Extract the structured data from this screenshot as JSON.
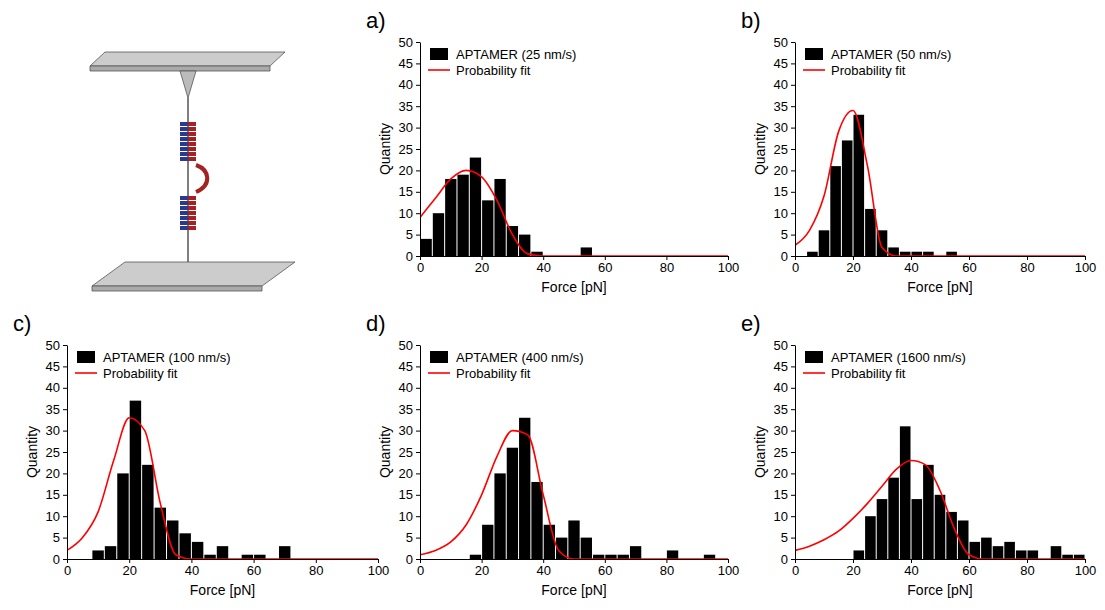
{
  "chart_data": [
    {
      "type": "histogram",
      "title": "a)",
      "xlabel": "Force [pN]",
      "ylabel": "Quantity",
      "xlim": [
        0,
        100
      ],
      "ylim": [
        0,
        50
      ],
      "xticks": [
        0,
        20,
        40,
        60,
        80,
        100
      ],
      "yticks": [
        0,
        5,
        10,
        15,
        20,
        25,
        30,
        35,
        40,
        45,
        50
      ],
      "grid": false,
      "legend": "upper left",
      "bins": [
        0,
        4,
        8,
        12,
        16,
        20,
        24,
        28,
        32,
        36,
        40,
        44,
        48,
        52,
        56,
        60,
        64,
        68,
        72,
        76,
        80,
        84,
        88,
        92,
        96,
        100
      ],
      "series": [
        {
          "name": "APTAMER (25 nm/s)",
          "type": "bar",
          "color": "#000000",
          "values": [
            4,
            10,
            18,
            19,
            23,
            13,
            18,
            7,
            5,
            1,
            0,
            0,
            0,
            2,
            0,
            0,
            0,
            0,
            0,
            0,
            0,
            0,
            0,
            0,
            0
          ]
        },
        {
          "name": "Probability fit",
          "type": "line",
          "color": "#ff0000",
          "x": [
            0,
            5,
            10,
            15,
            20,
            25,
            30,
            35,
            40,
            45,
            50,
            55,
            60,
            65,
            70,
            75,
            80,
            85,
            90,
            95,
            100
          ],
          "values": [
            9,
            13.5,
            18,
            20,
            18.5,
            13,
            5,
            0.5,
            0,
            0,
            0,
            0,
            0,
            0,
            0,
            0,
            0,
            0,
            0,
            0,
            0
          ]
        }
      ]
    },
    {
      "type": "histogram",
      "title": "b)",
      "xlabel": "Force [pN]",
      "ylabel": "Quantity",
      "xlim": [
        0,
        100
      ],
      "ylim": [
        0,
        50
      ],
      "xticks": [
        0,
        20,
        40,
        60,
        80,
        100
      ],
      "yticks": [
        0,
        5,
        10,
        15,
        20,
        25,
        30,
        35,
        40,
        45,
        50
      ],
      "grid": false,
      "legend": "upper left",
      "bins": [
        0,
        4,
        8,
        12,
        16,
        20,
        24,
        28,
        32,
        36,
        40,
        44,
        48,
        52,
        56,
        60,
        64,
        68,
        72,
        76,
        80,
        84,
        88,
        92,
        96,
        100
      ],
      "series": [
        {
          "name": "APTAMER (50 nm/s)",
          "type": "bar",
          "color": "#000000",
          "values": [
            0,
            1,
            6,
            21,
            27,
            33,
            11,
            6,
            2,
            1,
            1,
            1,
            0,
            1,
            0,
            0,
            0,
            0,
            0,
            0,
            0,
            0,
            0,
            0,
            0
          ]
        },
        {
          "name": "Probability fit",
          "type": "line",
          "color": "#ff0000",
          "x": [
            0,
            5,
            10,
            15,
            20,
            25,
            30,
            35,
            40,
            45,
            50,
            55,
            60,
            65,
            70,
            75,
            80,
            85,
            90,
            95,
            100
          ],
          "values": [
            2.5,
            6,
            14,
            29,
            34,
            21,
            2,
            0,
            0,
            0,
            0,
            0,
            0,
            0,
            0,
            0,
            0,
            0,
            0,
            0,
            0
          ]
        }
      ]
    },
    {
      "type": "histogram",
      "title": "c)",
      "xlabel": "Force [pN]",
      "ylabel": "Quantity",
      "xlim": [
        0,
        100
      ],
      "ylim": [
        0,
        50
      ],
      "xticks": [
        0,
        20,
        40,
        60,
        80,
        100
      ],
      "yticks": [
        0,
        5,
        10,
        15,
        20,
        25,
        30,
        35,
        40,
        45,
        50
      ],
      "grid": false,
      "legend": "upper left",
      "bins": [
        0,
        4,
        8,
        12,
        16,
        20,
        24,
        28,
        32,
        36,
        40,
        44,
        48,
        52,
        56,
        60,
        64,
        68,
        72,
        76,
        80,
        84,
        88,
        92,
        96,
        100
      ],
      "series": [
        {
          "name": "APTAMER (100 nm/s)",
          "type": "bar",
          "color": "#000000",
          "values": [
            0,
            0,
            2,
            3,
            20,
            37,
            22,
            12,
            9,
            6,
            4,
            1,
            3,
            0,
            1,
            1,
            0,
            3,
            0,
            0,
            0,
            0,
            0,
            0,
            0
          ]
        },
        {
          "name": "Probability fit",
          "type": "line",
          "color": "#ff0000",
          "x": [
            0,
            5,
            10,
            15,
            20,
            25,
            30,
            35,
            40,
            45,
            50,
            55,
            60,
            65,
            70,
            75,
            80,
            85,
            90,
            95,
            100
          ],
          "values": [
            2,
            5,
            11,
            23,
            33,
            30,
            13,
            1,
            0,
            0,
            0,
            0,
            0,
            0,
            0,
            0,
            0,
            0,
            0,
            0,
            0
          ]
        }
      ]
    },
    {
      "type": "histogram",
      "title": "d)",
      "xlabel": "Force [pN]",
      "ylabel": "Quantity",
      "xlim": [
        0,
        100
      ],
      "ylim": [
        0,
        50
      ],
      "xticks": [
        0,
        20,
        40,
        60,
        80,
        100
      ],
      "yticks": [
        0,
        5,
        10,
        15,
        20,
        25,
        30,
        35,
        40,
        45,
        50
      ],
      "grid": false,
      "legend": "upper left",
      "bins": [
        0,
        4,
        8,
        12,
        16,
        20,
        24,
        28,
        32,
        36,
        40,
        44,
        48,
        52,
        56,
        60,
        64,
        68,
        72,
        76,
        80,
        84,
        88,
        92,
        96,
        100
      ],
      "series": [
        {
          "name": "APTAMER (400 nm/s)",
          "type": "bar",
          "color": "#000000",
          "values": [
            0,
            0,
            0,
            0,
            1,
            8,
            20,
            26,
            33,
            18,
            8,
            5,
            9,
            5,
            1,
            1,
            1,
            3,
            0,
            0,
            2,
            0,
            0,
            1,
            0
          ]
        },
        {
          "name": "Probability fit",
          "type": "line",
          "color": "#ff0000",
          "x": [
            0,
            5,
            10,
            15,
            20,
            25,
            30,
            35,
            40,
            45,
            50,
            55,
            60,
            65,
            70,
            75,
            80,
            85,
            90,
            95,
            100
          ],
          "values": [
            1,
            2,
            4,
            8,
            15,
            24,
            30,
            29,
            15,
            2,
            0,
            0,
            0,
            0,
            0,
            0,
            0,
            0,
            0,
            0,
            0
          ]
        }
      ]
    },
    {
      "type": "histogram",
      "title": "e)",
      "xlabel": "Force [pN]",
      "ylabel": "Quantity",
      "xlim": [
        0,
        100
      ],
      "ylim": [
        0,
        50
      ],
      "xticks": [
        0,
        20,
        40,
        60,
        80,
        100
      ],
      "yticks": [
        0,
        5,
        10,
        15,
        20,
        25,
        30,
        35,
        40,
        45,
        50
      ],
      "grid": false,
      "legend": "upper left",
      "bins": [
        0,
        4,
        8,
        12,
        16,
        20,
        24,
        28,
        32,
        36,
        40,
        44,
        48,
        52,
        56,
        60,
        64,
        68,
        72,
        76,
        80,
        84,
        88,
        92,
        96,
        100
      ],
      "series": [
        {
          "name": "APTAMER (1600 nm/s)",
          "type": "bar",
          "color": "#000000",
          "values": [
            0,
            0,
            0,
            0,
            0,
            2,
            10,
            14,
            19,
            31,
            14,
            22,
            15,
            11,
            9,
            4,
            5,
            3,
            4,
            2,
            2,
            0,
            3,
            1,
            1
          ]
        },
        {
          "name": "Probability fit",
          "type": "line",
          "color": "#ff0000",
          "x": [
            0,
            5,
            10,
            15,
            20,
            25,
            30,
            35,
            40,
            45,
            50,
            55,
            60,
            65,
            70,
            75,
            80,
            85,
            90,
            95,
            100
          ],
          "values": [
            2,
            3,
            4.5,
            6.5,
            9.5,
            13,
            17,
            21,
            23,
            22,
            16,
            7,
            1,
            0,
            0,
            0,
            0,
            0,
            0,
            0,
            0
          ]
        }
      ]
    }
  ]
}
